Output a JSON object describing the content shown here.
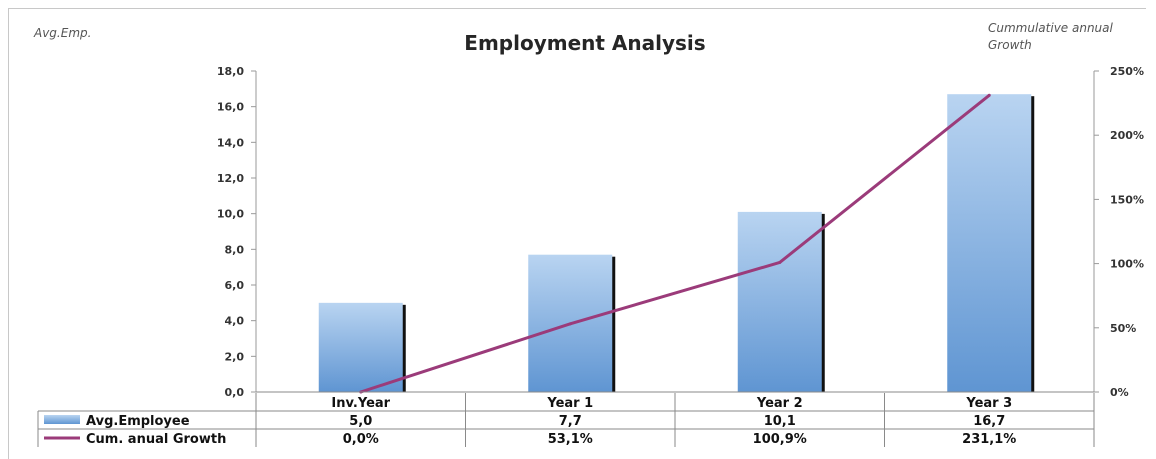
{
  "chart_data": {
    "type": "bar",
    "title": "Employment Analysis",
    "y_left_label": "Avg.Emp.",
    "y_right_label": [
      "Cummulative annual",
      "Growth"
    ],
    "categories": [
      "Inv.Year",
      "Year 1",
      "Year 2",
      "Year 3"
    ],
    "y_left_ticks": [
      "0,0",
      "2,0",
      "4,0",
      "6,0",
      "8,0",
      "10,0",
      "12,0",
      "14,0",
      "16,0",
      "18,0"
    ],
    "y_right_ticks": [
      "0%",
      "50%",
      "100%",
      "150%",
      "200%",
      "250%"
    ],
    "ylim_left": [
      0,
      18
    ],
    "ylim_right": [
      0,
      2.5
    ],
    "grid": false,
    "legend": "data-table",
    "series": [
      {
        "name": "Avg.Employee",
        "type": "bar",
        "axis": "left",
        "color": "#7aaee0",
        "values": [
          5.0,
          7.7,
          10.1,
          16.7
        ],
        "labels": [
          "5,0",
          "7,7",
          "10,1",
          "16,7"
        ]
      },
      {
        "name": "Cum. anual Growth",
        "type": "line",
        "axis": "right",
        "color": "#9b3b7a",
        "values": [
          0.0,
          0.531,
          1.009,
          2.311
        ],
        "labels": [
          "0,0%",
          "53,1%",
          "100,9%",
          "231,1%"
        ]
      }
    ]
  }
}
